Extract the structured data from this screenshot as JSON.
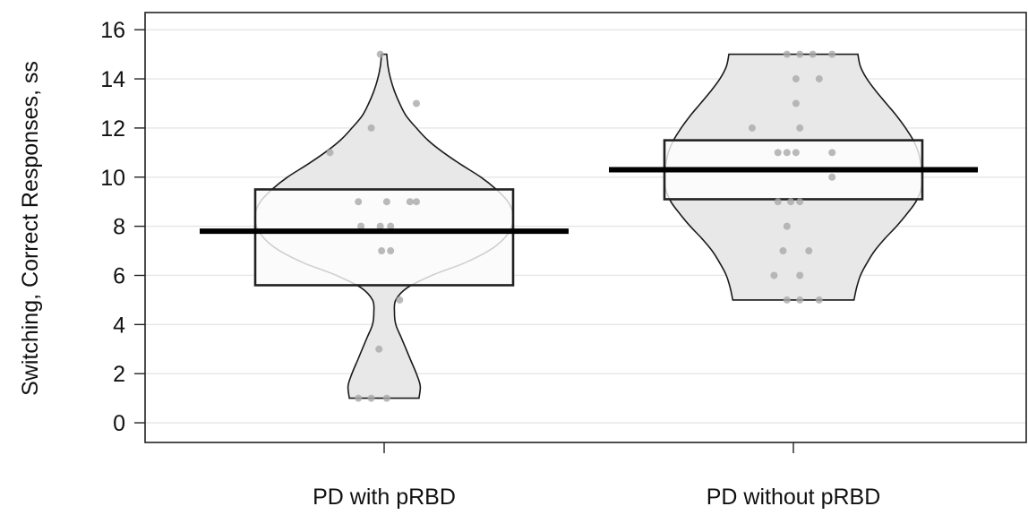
{
  "chart_data": {
    "type": "violin",
    "ylabel": "Switching, Correct Responses, ss",
    "ylim": [
      -0.8,
      16.7
    ],
    "yticks": [
      0,
      2,
      4,
      6,
      8,
      10,
      12,
      14,
      16
    ],
    "grid": true,
    "categories": [
      "PD with pRBD",
      "PD without pRBD"
    ],
    "groups": [
      {
        "label": "PD with pRBD",
        "mean": 7.8,
        "box_low": 5.6,
        "box_high": 9.5,
        "range": [
          1,
          15
        ],
        "density": [
          [
            1.0,
            0.27
          ],
          [
            1.5,
            0.28
          ],
          [
            2.0,
            0.25
          ],
          [
            2.5,
            0.21
          ],
          [
            3.0,
            0.17
          ],
          [
            3.5,
            0.13
          ],
          [
            4.0,
            0.09
          ],
          [
            4.5,
            0.08
          ],
          [
            5.0,
            0.09
          ],
          [
            5.5,
            0.18
          ],
          [
            6.0,
            0.37
          ],
          [
            6.5,
            0.62
          ],
          [
            7.0,
            0.81
          ],
          [
            7.5,
            0.93
          ],
          [
            8.0,
            0.99
          ],
          [
            8.5,
            1.0
          ],
          [
            9.0,
            0.96
          ],
          [
            9.5,
            0.87
          ],
          [
            10.0,
            0.75
          ],
          [
            10.5,
            0.6
          ],
          [
            11.0,
            0.46
          ],
          [
            11.5,
            0.34
          ],
          [
            12.0,
            0.25
          ],
          [
            12.5,
            0.17
          ],
          [
            13.0,
            0.12
          ],
          [
            13.5,
            0.08
          ],
          [
            14.0,
            0.05
          ],
          [
            14.5,
            0.03
          ],
          [
            15.0,
            0.02
          ]
        ],
        "points": [
          {
            "y": 1,
            "dx": -0.2
          },
          {
            "y": 1,
            "dx": -0.1
          },
          {
            "y": 1,
            "dx": 0.02
          },
          {
            "y": 3,
            "dx": -0.04
          },
          {
            "y": 5,
            "dx": 0.12
          },
          {
            "y": 7,
            "dx": -0.02
          },
          {
            "y": 7,
            "dx": 0.05
          },
          {
            "y": 8,
            "dx": -0.18
          },
          {
            "y": 8,
            "dx": -0.03
          },
          {
            "y": 8,
            "dx": 0.05
          },
          {
            "y": 9,
            "dx": -0.2
          },
          {
            "y": 9,
            "dx": 0.02
          },
          {
            "y": 9,
            "dx": 0.2
          },
          {
            "y": 9,
            "dx": 0.25
          },
          {
            "y": 11,
            "dx": -0.42
          },
          {
            "y": 12,
            "dx": -0.1
          },
          {
            "y": 13,
            "dx": 0.25
          },
          {
            "y": 15,
            "dx": -0.03
          }
        ]
      },
      {
        "label": "PD without pRBD",
        "mean": 10.3,
        "box_low": 9.1,
        "box_high": 11.5,
        "range": [
          5,
          15
        ],
        "density": [
          [
            5.0,
            0.47
          ],
          [
            5.5,
            0.49
          ],
          [
            6.0,
            0.52
          ],
          [
            6.5,
            0.57
          ],
          [
            7.0,
            0.63
          ],
          [
            7.5,
            0.71
          ],
          [
            8.0,
            0.8
          ],
          [
            8.5,
            0.88
          ],
          [
            9.0,
            0.95
          ],
          [
            9.5,
            0.99
          ],
          [
            10.0,
            1.0
          ],
          [
            10.5,
            0.99
          ],
          [
            11.0,
            0.97
          ],
          [
            11.5,
            0.93
          ],
          [
            12.0,
            0.87
          ],
          [
            12.5,
            0.8
          ],
          [
            13.0,
            0.72
          ],
          [
            13.5,
            0.64
          ],
          [
            14.0,
            0.57
          ],
          [
            14.5,
            0.52
          ],
          [
            15.0,
            0.5
          ]
        ],
        "points": [
          {
            "y": 5,
            "dx": -0.05
          },
          {
            "y": 5,
            "dx": 0.05
          },
          {
            "y": 5,
            "dx": 0.2
          },
          {
            "y": 6,
            "dx": -0.15
          },
          {
            "y": 6,
            "dx": 0.05
          },
          {
            "y": 7,
            "dx": -0.08
          },
          {
            "y": 7,
            "dx": 0.12
          },
          {
            "y": 8,
            "dx": -0.05
          },
          {
            "y": 9,
            "dx": -0.12
          },
          {
            "y": 9,
            "dx": -0.02
          },
          {
            "y": 9,
            "dx": 0.05
          },
          {
            "y": 10,
            "dx": 0.3
          },
          {
            "y": 11,
            "dx": -0.12
          },
          {
            "y": 11,
            "dx": -0.05
          },
          {
            "y": 11,
            "dx": 0.02
          },
          {
            "y": 11,
            "dx": 0.3
          },
          {
            "y": 12,
            "dx": -0.32
          },
          {
            "y": 12,
            "dx": 0.05
          },
          {
            "y": 13,
            "dx": 0.02
          },
          {
            "y": 14,
            "dx": 0.02
          },
          {
            "y": 14,
            "dx": 0.2
          },
          {
            "y": 15,
            "dx": -0.05
          },
          {
            "y": 15,
            "dx": 0.05
          },
          {
            "y": 15,
            "dx": 0.15
          },
          {
            "y": 15,
            "dx": 0.3
          }
        ]
      }
    ],
    "colors": {
      "violin_fill": "#e8e8e8",
      "violin_stroke": "#1a1a1a",
      "box_fill": "#fbfbfb",
      "box_stroke": "#222222",
      "mean_line": "#000000",
      "point": "#a9a9a9",
      "grid": "#e6e6e6"
    }
  }
}
